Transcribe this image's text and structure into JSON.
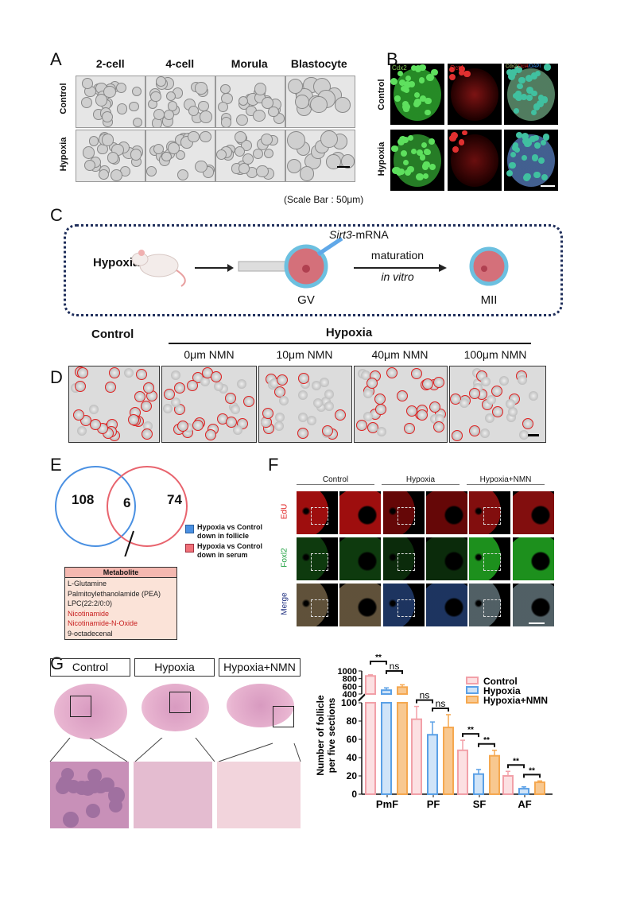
{
  "panels": {
    "A": "A",
    "B": "B",
    "C": "C",
    "D": "D",
    "E": "E",
    "F": "F",
    "G": "G"
  },
  "panelA": {
    "columns": [
      "2-cell",
      "4-cell",
      "Morula",
      "Blastocyte"
    ],
    "rows": [
      "Control",
      "Hypoxia"
    ],
    "scale_note": "(Scale Bar : 50μm)"
  },
  "panelB": {
    "rows": [
      "Control",
      "Hypoxia"
    ],
    "channels": [
      "Cdx2",
      "Oct4",
      "Cdx2/Oct4/DAPI"
    ],
    "merge_parts": [
      "Cdx2/",
      "Oct4",
      "/DAPI"
    ]
  },
  "panelC": {
    "condition": "Hypoxia",
    "injection": "Sirt3",
    "injection_suffix": "-mRNA",
    "arrow_top": "maturation",
    "arrow_bottom": "in vitro",
    "stage_start": "GV",
    "stage_end": "MII"
  },
  "panelD": {
    "control": "Control",
    "group": "Hypoxia",
    "subgroups": [
      "0μm NMN",
      "10μm NMN",
      "40μm NMN",
      "100μm NMN"
    ]
  },
  "panelE": {
    "venn": {
      "left_only": "108",
      "overlap": "6",
      "right_only": "74"
    },
    "legend": [
      {
        "label": "Hypoxia vs Control down in follicle",
        "color": "#4a90e2"
      },
      {
        "label": "Hypoxia vs Control down in serum",
        "color": "#e8646e"
      }
    ],
    "table": {
      "header": "Metabolite",
      "rows": [
        {
          "name": "L-Glutamine",
          "highlight": false
        },
        {
          "name": "Palmitoylethanolamide (PEA)",
          "highlight": false
        },
        {
          "name": "LPC(22:2/0:0)",
          "highlight": false
        },
        {
          "name": "Nicotinamide",
          "highlight": true
        },
        {
          "name": "Nicotinamide-N-Oxide",
          "highlight": true
        },
        {
          "name": "9-octadecenal",
          "highlight": false
        }
      ]
    }
  },
  "panelF": {
    "columns": [
      "Control",
      "Hypoxia",
      "Hypoxia+NMN"
    ],
    "rows": [
      "EdU",
      "Foxl2",
      "Merge"
    ]
  },
  "panelG": {
    "columns": [
      "Control",
      "Hypoxia",
      "Hypoxia+NMN"
    ]
  },
  "chart_data": {
    "type": "bar",
    "ylabel": "Number of follicle per five sections",
    "categories": [
      "PmF",
      "PF",
      "SF",
      "AF"
    ],
    "series": [
      {
        "name": "Control",
        "color": "#f2a0a8",
        "values": [
          870,
          82,
          48,
          20
        ],
        "error": [
          30,
          14,
          11,
          5
        ]
      },
      {
        "name": "Hypoxia",
        "color": "#5aa0e6",
        "values": [
          500,
          65,
          22,
          6
        ],
        "error": [
          60,
          14,
          5,
          2
        ]
      },
      {
        "name": "Hypoxia+NMN",
        "color": "#f5a850",
        "values": [
          580,
          73,
          42,
          13
        ],
        "error": [
          60,
          14,
          6,
          1.5
        ]
      }
    ],
    "y_axis_broken": true,
    "yticks_lower": [
      0,
      20,
      40,
      60,
      80,
      100
    ],
    "yticks_upper": [
      400,
      600,
      800,
      1000
    ],
    "ylim_lower": [
      0,
      100
    ],
    "ylim_upper": [
      400,
      1000
    ],
    "significance": [
      {
        "category": "PmF",
        "pair": "Control-Hypoxia",
        "label": "**"
      },
      {
        "category": "PmF",
        "pair": "Hypoxia-Hypoxia+NMN",
        "label": "ns"
      },
      {
        "category": "PF",
        "pair": "Control-Hypoxia",
        "label": "ns"
      },
      {
        "category": "PF",
        "pair": "Hypoxia-Hypoxia+NMN",
        "label": "ns"
      },
      {
        "category": "SF",
        "pair": "Control-Hypoxia",
        "label": "**"
      },
      {
        "category": "SF",
        "pair": "Hypoxia-Hypoxia+NMN",
        "label": "**"
      },
      {
        "category": "AF",
        "pair": "Control-Hypoxia",
        "label": "**"
      },
      {
        "category": "AF",
        "pair": "Hypoxia-Hypoxia+NMN",
        "label": "**"
      }
    ],
    "legend_position": "top-right"
  }
}
